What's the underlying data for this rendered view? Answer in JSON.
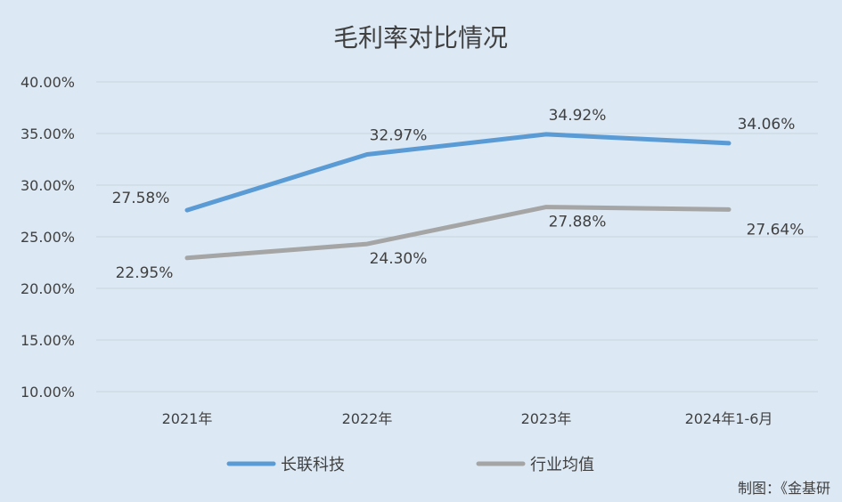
{
  "chart_data": {
    "type": "line",
    "title": "毛利率对比情况",
    "categories": [
      "2021年",
      "2022年",
      "2023年",
      "2024年1-6月"
    ],
    "series": [
      {
        "name": "长联科技",
        "color": "#5b9bd5",
        "values": [
          27.58,
          32.97,
          34.92,
          34.06
        ],
        "labels": [
          "27.58%",
          "32.97%",
          "34.92%",
          "34.06%"
        ]
      },
      {
        "name": "行业均值",
        "color": "#a5a5a5",
        "values": [
          22.95,
          24.3,
          27.88,
          27.64
        ],
        "labels": [
          "22.95%",
          "24.30%",
          "27.88%",
          "27.64%"
        ]
      }
    ],
    "yticks": [
      "40.00%",
      "35.00%",
      "30.00%",
      "25.00%",
      "20.00%",
      "15.00%",
      "10.00%"
    ],
    "ylim": [
      10,
      40
    ],
    "grid": true,
    "legend": "bottom"
  },
  "credit": "制图：《金基研"
}
